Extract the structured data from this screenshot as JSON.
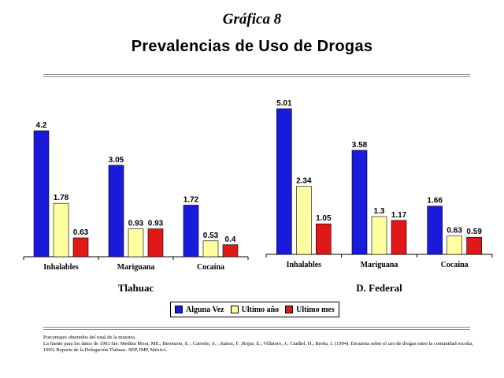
{
  "header": {
    "kicker": "Gráfica 8",
    "title": "Prevalencias de Uso de Drogas"
  },
  "colors": {
    "alguna_vez": "#1a1adb",
    "ultimo_anio": "#ffffa0",
    "ultimo_mes": "#e01818"
  },
  "chart_data": [
    {
      "type": "bar",
      "title": "Tlahuac",
      "categories": [
        "Inhalables",
        "Mariguana",
        "Cocaína"
      ],
      "series": [
        {
          "name": "Alguna Vez",
          "values": [
            4.2,
            3.05,
            1.72
          ]
        },
        {
          "name": "Ultimo año",
          "values": [
            1.78,
            0.93,
            0.53
          ]
        },
        {
          "name": "Ultimo mes",
          "values": [
            0.63,
            0.93,
            0.4
          ]
        }
      ],
      "labels": [
        [
          "4.2",
          "3.05",
          "1.72"
        ],
        [
          "1.78",
          "0.93",
          "0.53"
        ],
        [
          "0.63",
          "0.93",
          "0.4"
        ]
      ],
      "ylim": [
        0,
        4.2
      ],
      "legend": "bottom"
    },
    {
      "type": "bar",
      "title": "D. Federal",
      "categories": [
        "Inhalables",
        "Mariguana",
        "Cocaína"
      ],
      "series": [
        {
          "name": "Alguna Vez",
          "values": [
            5.01,
            3.58,
            1.66
          ]
        },
        {
          "name": "Ultimo año",
          "values": [
            2.34,
            1.3,
            0.63
          ]
        },
        {
          "name": "Ultimo mes",
          "values": [
            1.05,
            1.17,
            0.59
          ]
        }
      ],
      "labels": [
        [
          "5.01",
          "3.58",
          "1.66"
        ],
        [
          "2.34",
          "1.3",
          "0.63"
        ],
        [
          "1.05",
          "1.17",
          "0.59"
        ]
      ],
      "ylim": [
        0,
        5.01
      ],
      "legend": "bottom"
    }
  ],
  "legend": {
    "items": [
      "Alguna Vez",
      "Ultimo año",
      "Ultimo mes"
    ]
  },
  "notes": {
    "line1": "Porcentajes obtenidos del total de la muestra.",
    "line2": "La fuente para los datos de 1993 fue: Medina Mora, ME.; Berenzon, S. ; Carreño, S. ; Juárez, F. ;Rojas, E.; Villatoro, J.; Cardiel, H.; Breña, J. (1994). Encuesta sobre el uso de drogas entre la comunidad escolar, 1993; Reporte de la Delegación Tlahuac. SEP, IMP, México."
  }
}
